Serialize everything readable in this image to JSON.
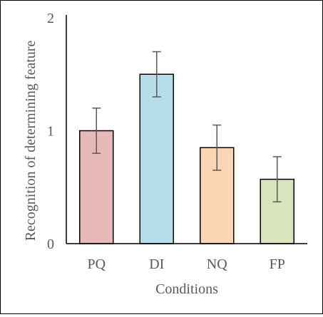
{
  "chart_data": {
    "type": "bar",
    "title": "",
    "xlabel": "Conditions",
    "ylabel": "Recognition of determining feature",
    "categories": [
      "PQ",
      "DI",
      "NQ",
      "FP"
    ],
    "values": [
      1.0,
      1.5,
      0.85,
      0.57
    ],
    "error": [
      0.2,
      0.2,
      0.2,
      0.2
    ],
    "ylim": [
      0,
      2
    ],
    "yticks": [
      0,
      1,
      2
    ],
    "ytick_labels": [
      "0",
      "1",
      "2"
    ],
    "grid": false,
    "legend": "none",
    "colors": {
      "bars": [
        "#e6b8b7",
        "#b7dee8",
        "#fcd5b4",
        "#d8e4bc"
      ],
      "bar_edge": "#000000",
      "axis": "#000000",
      "errorbar": "#595959",
      "text": "#595959"
    }
  }
}
